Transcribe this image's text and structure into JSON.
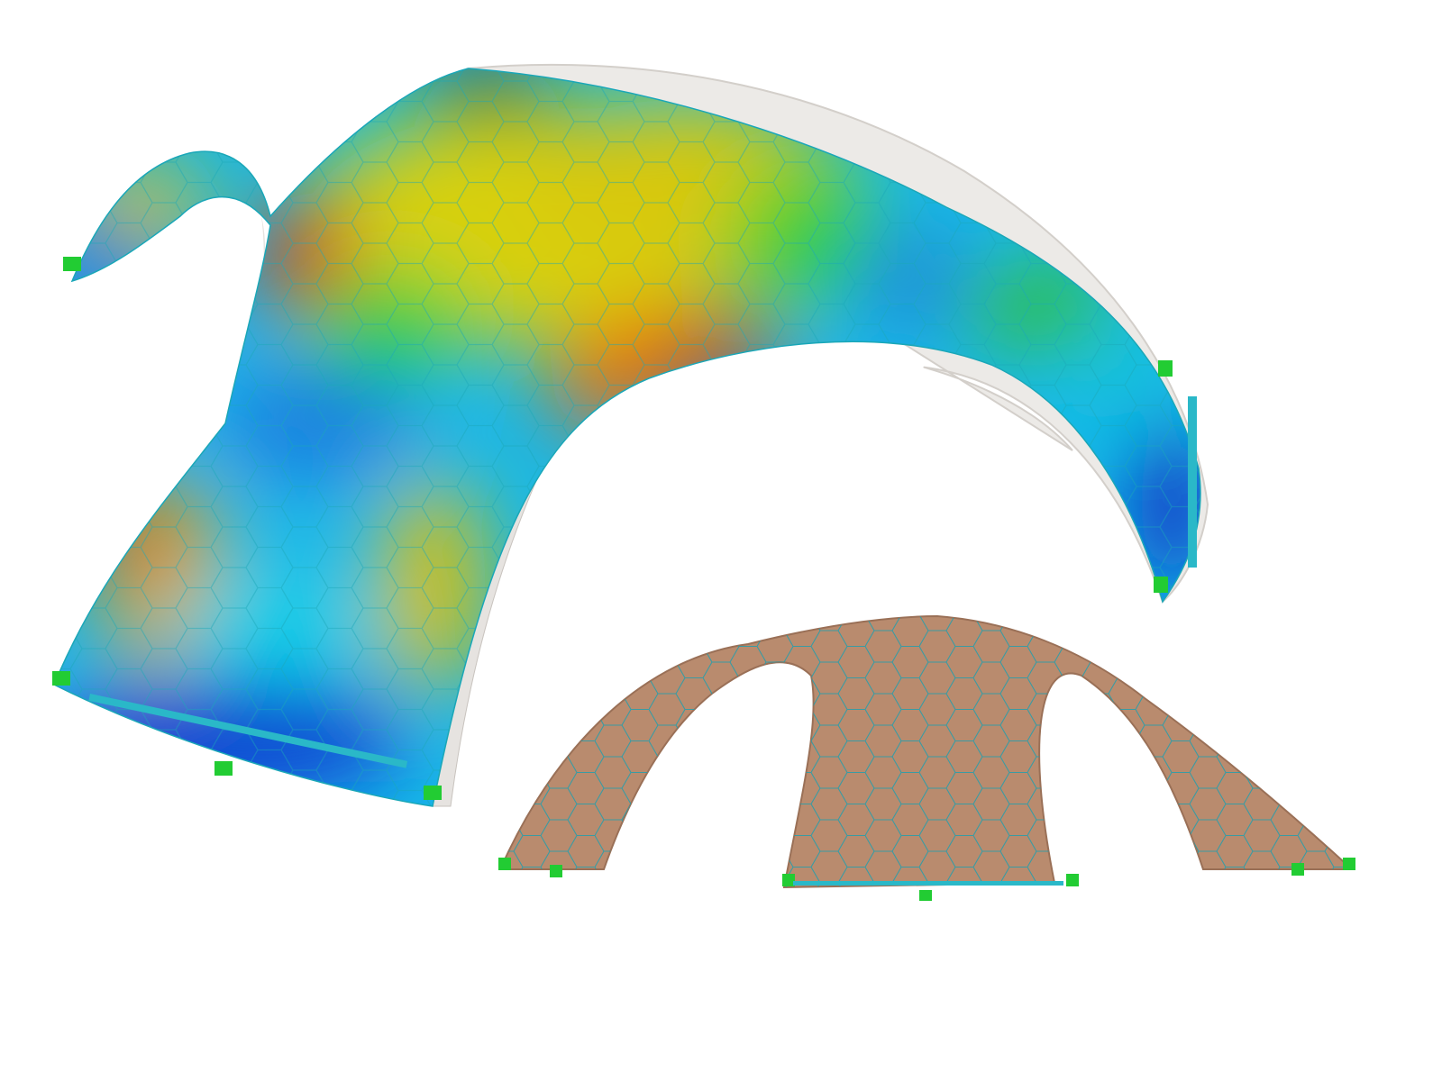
{
  "scene": {
    "description_visible_text": "",
    "models": [
      {
        "id": "shell-result-contour",
        "colormap": [
          "#0a1ad0",
          "#1a7be0",
          "#10d0e8",
          "#20d040",
          "#d8d010",
          "#e88010",
          "#e01010"
        ]
      },
      {
        "id": "timber-dome-render",
        "color": "#b98b6e"
      }
    ],
    "colors": {
      "background": "#ffffff",
      "mesh_lines": "#1aa7b8",
      "supports": "#22cc33",
      "ghost_shell": "#e6e3e0",
      "timber": "#b98b6e"
    }
  }
}
